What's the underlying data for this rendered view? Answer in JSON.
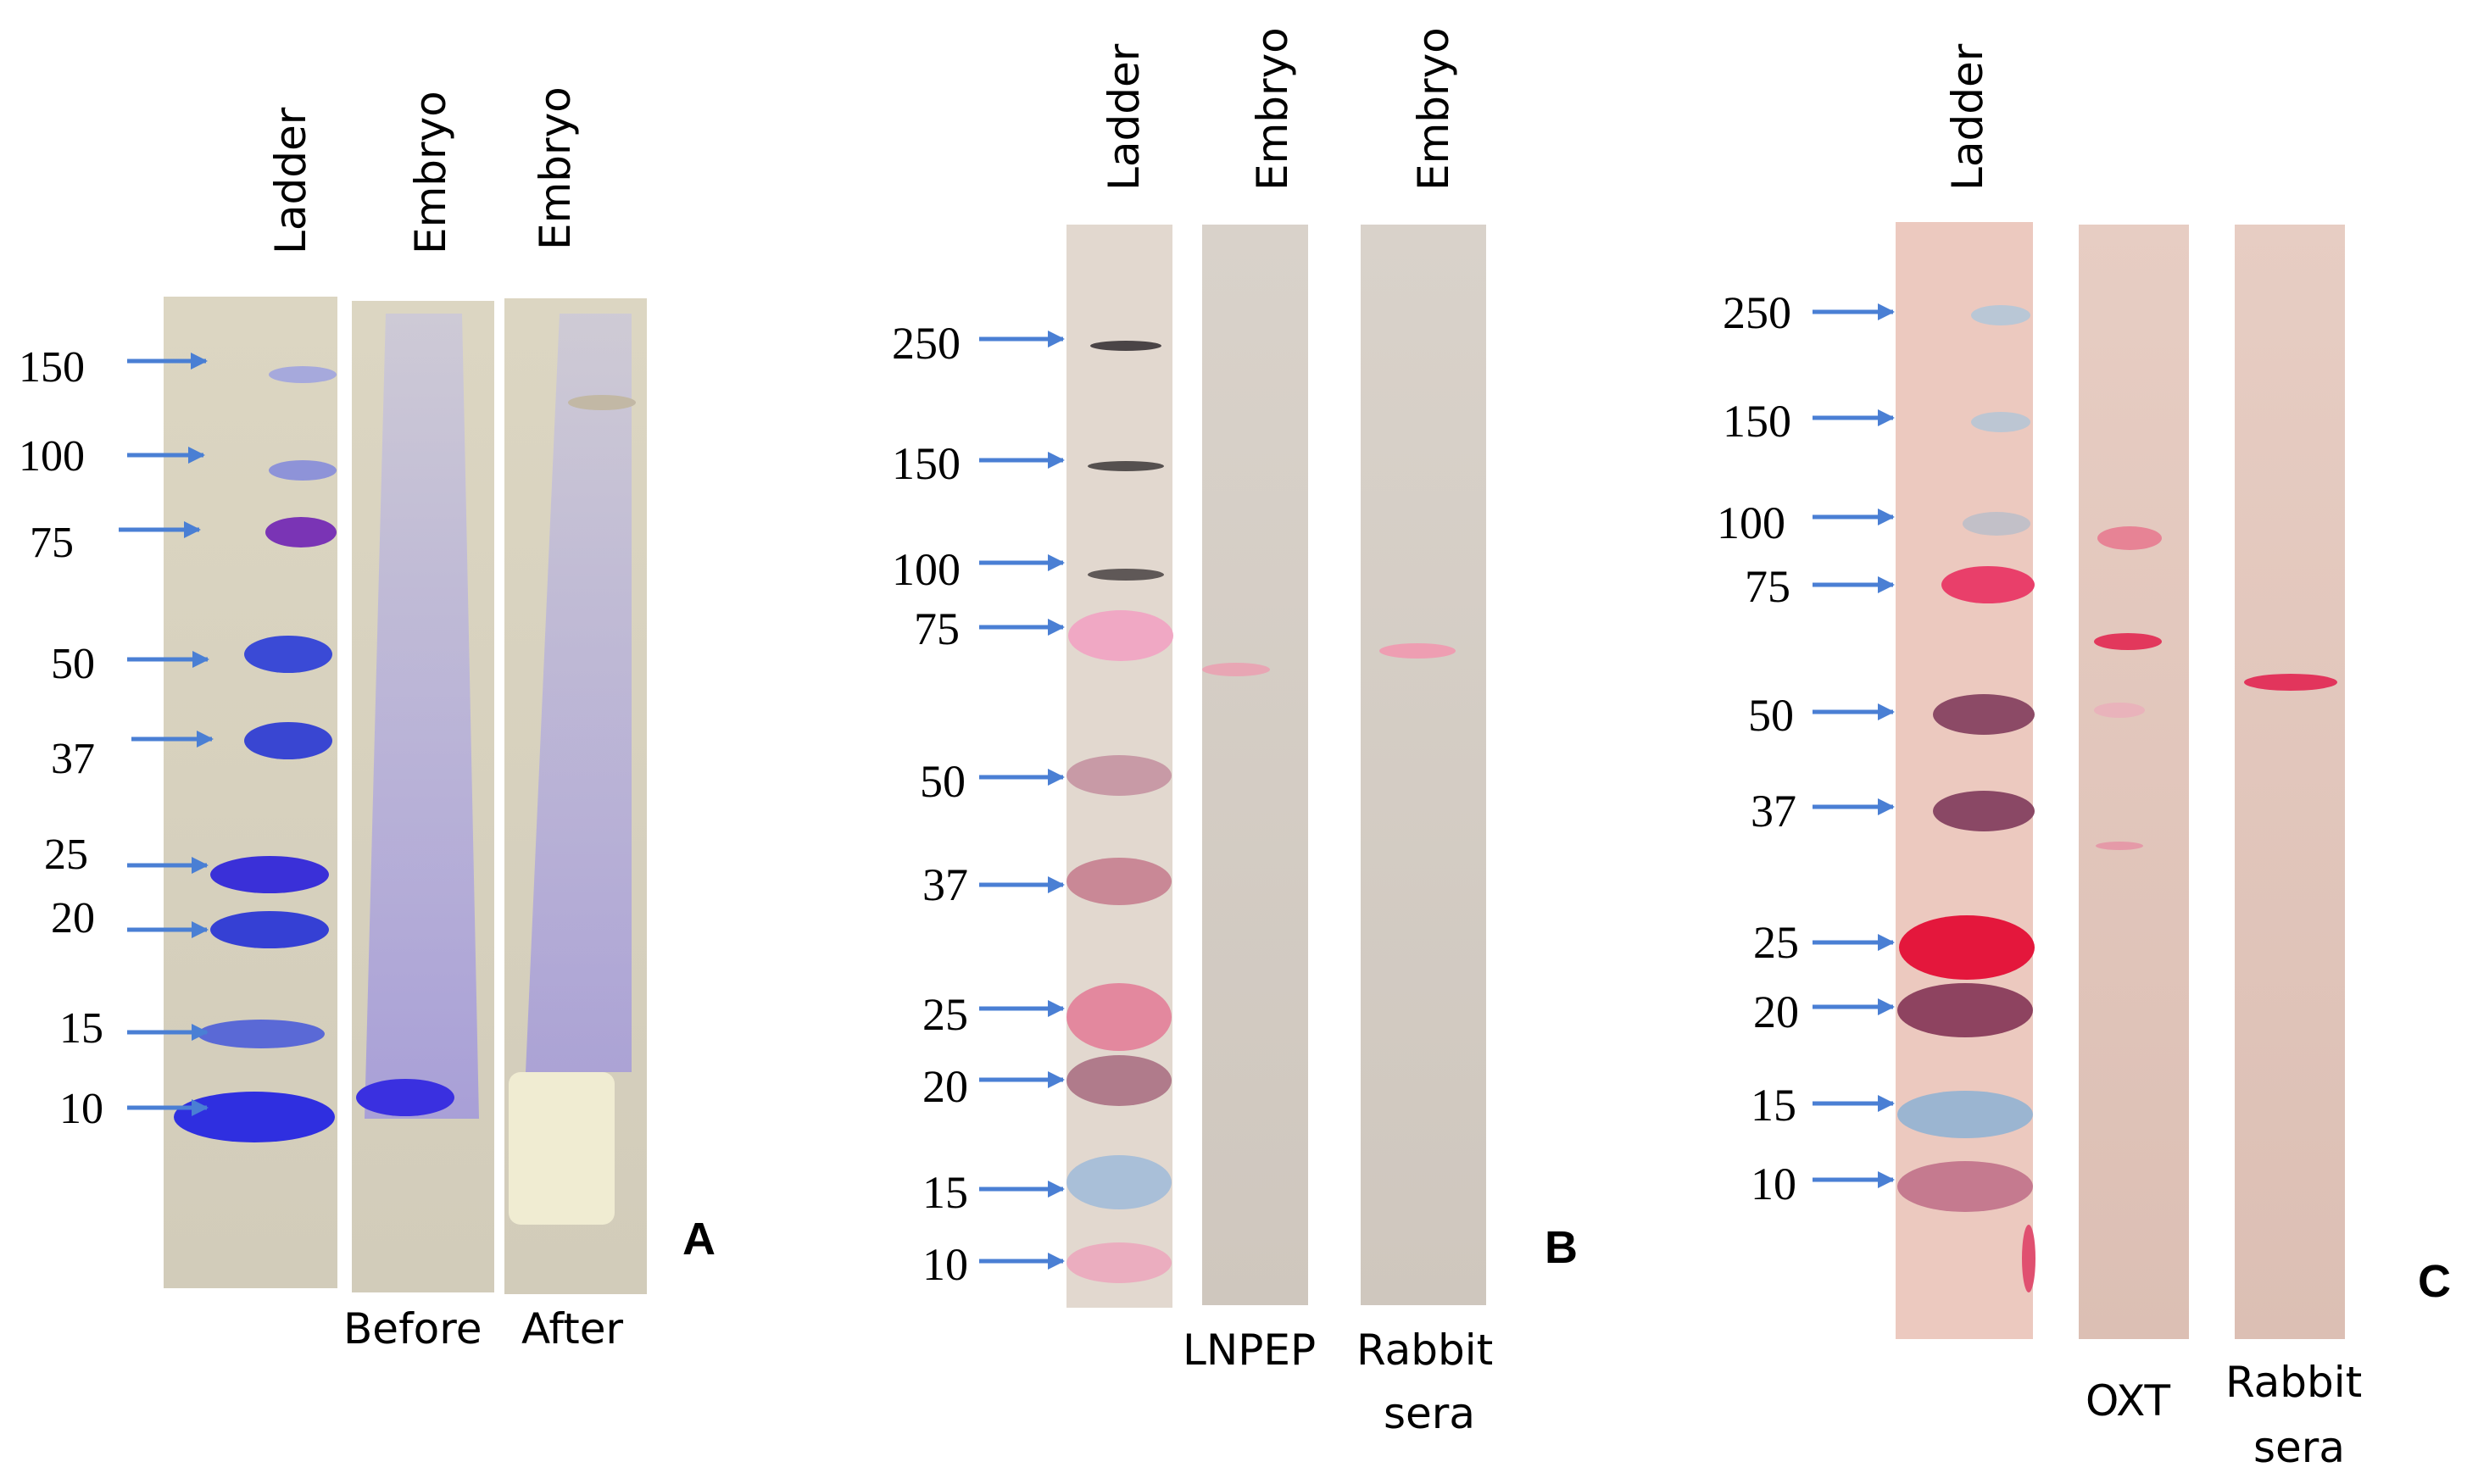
{
  "figure": {
    "panels": [
      {
        "letter": "A",
        "lane_headers": [
          "Ladder",
          "Embryo",
          "Embryo"
        ],
        "captions": [
          "Before",
          "After"
        ],
        "markers": [
          "150",
          "100",
          "75",
          "50",
          "37",
          "25",
          "20",
          "15",
          "10"
        ]
      },
      {
        "letter": "B",
        "lane_headers": [
          "Ladder",
          "Embryo",
          "Embryo"
        ],
        "captions": [
          "LNPEP",
          "Rabbit",
          "sera"
        ],
        "markers": [
          "250",
          "150",
          "100",
          "75",
          "50",
          "37",
          "25",
          "20",
          "15",
          "10"
        ]
      },
      {
        "letter": "C",
        "lane_headers": [
          "Ladder"
        ],
        "captions": [
          "OXT",
          "Rabbit",
          "sera"
        ],
        "markers": [
          "250",
          "150",
          "100",
          "75",
          "50",
          "37",
          "25",
          "20",
          "15",
          "10"
        ]
      }
    ]
  },
  "colors": {
    "arrow": "#4a7fd4",
    "gel_a": "#d8d3c0",
    "membrane_b": "#d6cfc6",
    "membrane_c": "#e2c8be"
  }
}
